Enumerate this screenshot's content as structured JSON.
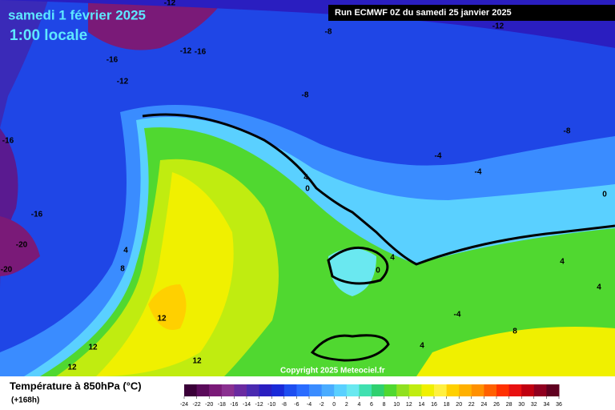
{
  "header": {
    "date": "samedi 1 février 2025",
    "time": "1:00 locale",
    "run": "Run ECMWF 0Z du samedi 25 janvier 2025"
  },
  "copyright": "Copyright 2025 Meteociel.fr",
  "map": {
    "contour_labels": [
      -12,
      -8,
      -12,
      -12,
      -16,
      -16,
      -12,
      -8,
      -16,
      -8,
      -4,
      -4,
      4,
      0,
      0,
      -16,
      -20,
      -20,
      4,
      8,
      4,
      0,
      4,
      4,
      -4,
      12,
      8,
      4,
      12,
      12,
      12
    ]
  },
  "legend": {
    "title": "Température à 850hPa (°C)",
    "lead": "(+168h)",
    "ticks": [
      -24,
      -22,
      -20,
      -18,
      -16,
      -14,
      -12,
      -10,
      -8,
      -6,
      -4,
      -2,
      0,
      2,
      4,
      6,
      8,
      10,
      12,
      14,
      16,
      18,
      20,
      22,
      24,
      26,
      28,
      30,
      32,
      34,
      36
    ],
    "colors": [
      "#3a0038",
      "#5a0a5a",
      "#7a1a78",
      "#8a3090",
      "#6a2aa0",
      "#4a2ab0",
      "#2a1ec0",
      "#1a2ad8",
      "#1e4ef0",
      "#2a6cff",
      "#3a8cff",
      "#4aacff",
      "#5ad0ff",
      "#6ae8f0",
      "#40e0b0",
      "#30d070",
      "#50d830",
      "#90e020",
      "#c0ec10",
      "#f0f000",
      "#fff040",
      "#ffd000",
      "#ffb000",
      "#ff9000",
      "#ff6000",
      "#ff3000",
      "#e81010",
      "#c00010",
      "#900020",
      "#600020"
    ]
  }
}
